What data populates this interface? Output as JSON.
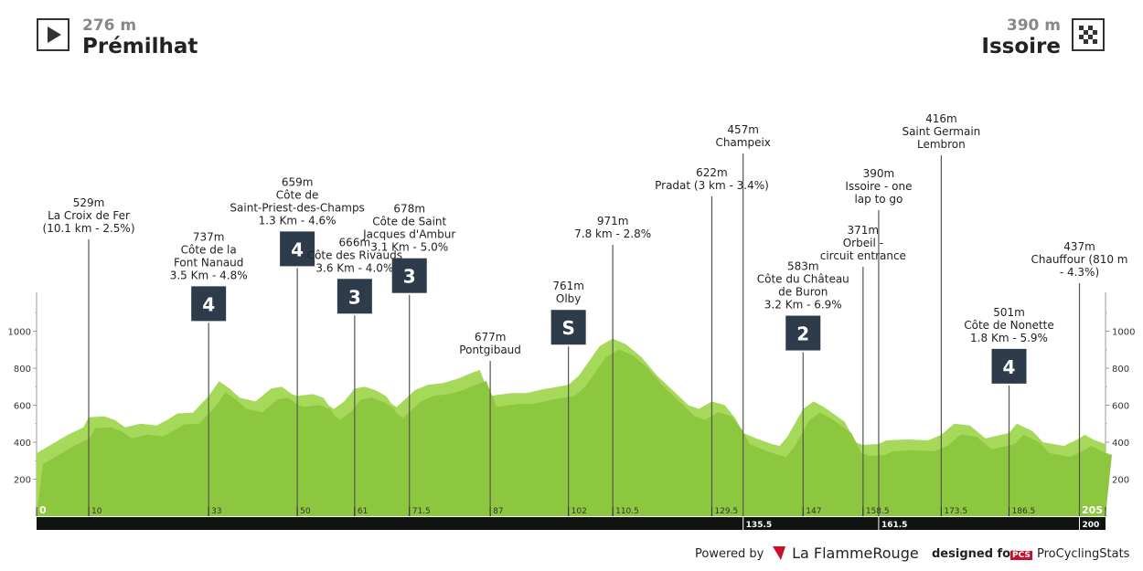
{
  "header": {
    "start": {
      "elevation": "276 m",
      "town": "Prémilhat"
    },
    "finish": {
      "elevation": "390 m",
      "town": "Issoire"
    }
  },
  "footer": {
    "powered_by": "Powered by",
    "brand": "La FlammeRouge",
    "designed_for": "designed for",
    "pcs_logo": "PCS",
    "pcs_name": "ProCyclingStats"
  },
  "colors": {
    "profile_light": "#a6d95a",
    "profile_dark": "#8dc63f",
    "marker_bg": "#2e3b4a",
    "axis_bar": "#0f1410"
  },
  "chart_data": {
    "type": "area",
    "xlim": [
      0,
      205
    ],
    "ylim": [
      0,
      1100
    ],
    "y_ticks": [
      200,
      400,
      600,
      800,
      1000
    ],
    "distance_ticks": [
      "0",
      "10",
      "33",
      "50",
      "61",
      "71.5",
      "87",
      "102",
      "110.5",
      "129.5",
      "147",
      "158.5",
      "173.5",
      "186.5",
      "205"
    ],
    "distance_tick_values": [
      0,
      10,
      33,
      50,
      61,
      71.5,
      87,
      102,
      110.5,
      129.5,
      147,
      158.5,
      173.5,
      186.5,
      205
    ],
    "bar_ticks": [
      "135.5",
      "161.5",
      "200"
    ],
    "bar_tick_values": [
      135.5,
      161.5,
      200
    ],
    "profile": [
      [
        0,
        340
      ],
      [
        3,
        390
      ],
      [
        6,
        440
      ],
      [
        9,
        480
      ],
      [
        10,
        535
      ],
      [
        13,
        540
      ],
      [
        15,
        520
      ],
      [
        17,
        480
      ],
      [
        20,
        500
      ],
      [
        23,
        490
      ],
      [
        25,
        520
      ],
      [
        27,
        555
      ],
      [
        30,
        560
      ],
      [
        33,
        650
      ],
      [
        35,
        730
      ],
      [
        37,
        690
      ],
      [
        39,
        640
      ],
      [
        42,
        620
      ],
      [
        45,
        690
      ],
      [
        47,
        700
      ],
      [
        49,
        660
      ],
      [
        50,
        650
      ],
      [
        53,
        660
      ],
      [
        55,
        640
      ],
      [
        56,
        600
      ],
      [
        57,
        580
      ],
      [
        59,
        620
      ],
      [
        61,
        690
      ],
      [
        63,
        700
      ],
      [
        65,
        680
      ],
      [
        67,
        650
      ],
      [
        68,
        610
      ],
      [
        69,
        590
      ],
      [
        71,
        640
      ],
      [
        72.5,
        680
      ],
      [
        75,
        710
      ],
      [
        78,
        720
      ],
      [
        81,
        745
      ],
      [
        83,
        770
      ],
      [
        85,
        790
      ],
      [
        87,
        650
      ],
      [
        91,
        665
      ],
      [
        94,
        665
      ],
      [
        97,
        685
      ],
      [
        100,
        700
      ],
      [
        102,
        710
      ],
      [
        104,
        760
      ],
      [
        106,
        840
      ],
      [
        108,
        920
      ],
      [
        110.5,
        960
      ],
      [
        113,
        930
      ],
      [
        116,
        860
      ],
      [
        119,
        760
      ],
      [
        122,
        680
      ],
      [
        125,
        600
      ],
      [
        127,
        580
      ],
      [
        129.5,
        620
      ],
      [
        132,
        600
      ],
      [
        134,
        530
      ],
      [
        135.5,
        450
      ],
      [
        138,
        420
      ],
      [
        141,
        390
      ],
      [
        142.5,
        380
      ],
      [
        144,
        430
      ],
      [
        147,
        580
      ],
      [
        149,
        620
      ],
      [
        151,
        590
      ],
      [
        153,
        550
      ],
      [
        155,
        510
      ],
      [
        157,
        400
      ],
      [
        158.5,
        385
      ],
      [
        161.5,
        390
      ],
      [
        163,
        410
      ],
      [
        167,
        415
      ],
      [
        171,
        410
      ],
      [
        173.5,
        440
      ],
      [
        176,
        500
      ],
      [
        179,
        490
      ],
      [
        182,
        420
      ],
      [
        186.5,
        450
      ],
      [
        188,
        500
      ],
      [
        191,
        460
      ],
      [
        193,
        400
      ],
      [
        197,
        380
      ],
      [
        200,
        420
      ],
      [
        201,
        440
      ],
      [
        203,
        410
      ],
      [
        205,
        390
      ]
    ],
    "waypoints": [
      {
        "km": 10,
        "lines": [
          "529m",
          "La Croix de Fer",
          "(10.1 km - 2.5%)"
        ]
      },
      {
        "km": 33,
        "lines": [
          "737m",
          "Côte de la",
          "Font Nanaud",
          "3.5 Km - 4.8%"
        ],
        "category": "4"
      },
      {
        "km": 50,
        "lines": [
          "659m",
          "Côte de",
          "Saint-Priest-des-Champs",
          "1.3 Km - 4.6%"
        ],
        "category": "4"
      },
      {
        "km": 61,
        "lines": [
          "666m",
          "Côte des Rivauds",
          "3.6 Km - 4.0%"
        ],
        "category": "3"
      },
      {
        "km": 71.5,
        "lines": [
          "678m",
          "Côte de Saint",
          "Jacques d'Ambur",
          "3.1 Km - 5.0%"
        ],
        "category": "3"
      },
      {
        "km": 87,
        "lines": [
          "677m",
          "Pontgibaud"
        ]
      },
      {
        "km": 102,
        "lines": [
          "761m",
          "Olby"
        ],
        "category": "S"
      },
      {
        "km": 110.5,
        "lines": [
          "971m",
          "7.8 km - 2.8%"
        ]
      },
      {
        "km": 129.5,
        "lines": [
          "622m",
          "Pradat (3 km - 3.4%)"
        ]
      },
      {
        "km": 135.5,
        "lines": [
          "457m",
          "Champeix"
        ]
      },
      {
        "km": 147,
        "lines": [
          "583m",
          "Côte du Château",
          "de Buron",
          "3.2 Km - 6.9%"
        ],
        "category": "2"
      },
      {
        "km": 158.5,
        "lines": [
          "371m",
          "Orbeil -",
          "circuit entrance"
        ]
      },
      {
        "km": 161.5,
        "lines": [
          "390m",
          "Issoire - one",
          "lap to go"
        ]
      },
      {
        "km": 173.5,
        "lines": [
          "416m",
          "Saint Germain",
          "Lembron"
        ]
      },
      {
        "km": 186.5,
        "lines": [
          "501m",
          "Côte de Nonette",
          "1.8 Km - 5.9%"
        ],
        "category": "4"
      },
      {
        "km": 200,
        "lines": [
          "437m",
          "Chauffour (810 m",
          "- 4.3%)"
        ]
      }
    ]
  }
}
